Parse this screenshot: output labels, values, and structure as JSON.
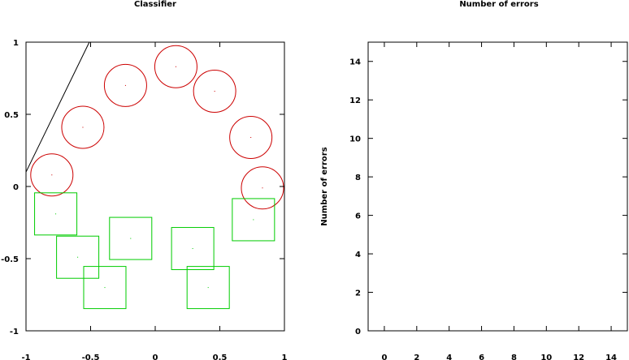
{
  "chart_data": [
    {
      "type": "scatter",
      "title": "Classifier",
      "xlabel": "",
      "ylabel": "",
      "xlim": [
        -1,
        1
      ],
      "ylim": [
        -1,
        1
      ],
      "xticks": [
        -1,
        -0.5,
        0,
        0.5,
        1
      ],
      "xtick_labels": [
        "-1",
        "-0.5",
        "0",
        "0.5",
        "1"
      ],
      "yticks": [
        -1,
        -0.5,
        0,
        0.5,
        1
      ],
      "ytick_labels": [
        "-1",
        "-0.5",
        "0",
        "0.5",
        "1"
      ],
      "grid": false,
      "colors": {
        "circles": "#cc0000",
        "squares": "#00cc00",
        "line": "#000000"
      },
      "series": [
        {
          "marker": "circle",
          "points": [
            {
              "x": -0.8,
              "y": 0.08
            },
            {
              "x": -0.56,
              "y": 0.41
            },
            {
              "x": -0.23,
              "y": 0.7
            },
            {
              "x": 0.16,
              "y": 0.83
            },
            {
              "x": 0.46,
              "y": 0.66
            },
            {
              "x": 0.74,
              "y": 0.34
            },
            {
              "x": 0.83,
              "y": -0.01
            }
          ]
        },
        {
          "marker": "square",
          "points": [
            {
              "x": -0.77,
              "y": -0.19
            },
            {
              "x": -0.6,
              "y": -0.49
            },
            {
              "x": -0.39,
              "y": -0.7
            },
            {
              "x": -0.19,
              "y": -0.36
            },
            {
              "x": 0.29,
              "y": -0.43
            },
            {
              "x": 0.41,
              "y": -0.7
            },
            {
              "x": 0.76,
              "y": -0.23
            }
          ]
        }
      ],
      "line": {
        "x": [
          -1,
          -0.51
        ],
        "y": [
          0.1,
          1
        ]
      }
    },
    {
      "type": "line",
      "title": "Number of errors",
      "xlabel": "",
      "ylabel": "Number of errors",
      "xlim": [
        -1,
        15
      ],
      "ylim": [
        0,
        15
      ],
      "xticks": [
        0,
        2,
        4,
        6,
        8,
        10,
        12,
        14
      ],
      "xtick_labels": [
        "0",
        "2",
        "4",
        "6",
        "8",
        "10",
        "12",
        "14"
      ],
      "yticks": [
        0,
        2,
        4,
        6,
        8,
        10,
        12,
        14
      ],
      "ytick_labels": [
        "0",
        "2",
        "4",
        "6",
        "8",
        "10",
        "12",
        "14"
      ],
      "grid": false,
      "series": []
    }
  ]
}
